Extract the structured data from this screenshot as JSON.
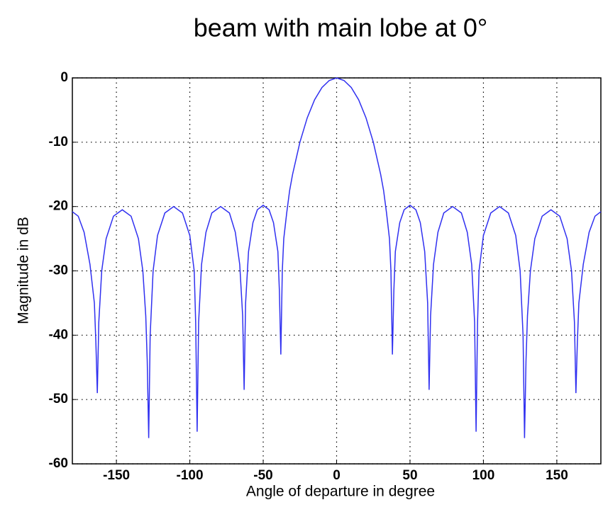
{
  "chart_data": {
    "type": "line",
    "title": "beam with main lobe at 0°",
    "x_label": "Angle of departure in degree",
    "y_label": "Magnitude in dB",
    "x": [
      -180,
      -176,
      -172,
      -168,
      -165,
      -164,
      -163,
      -162,
      -160,
      -157,
      -152,
      -146,
      -140,
      -135,
      -132,
      -130,
      -129,
      -128,
      -127,
      -125,
      -122,
      -117,
      -111,
      -105,
      -100,
      -97,
      -96,
      -95,
      -94,
      -92,
      -89,
      -85,
      -79,
      -73,
      -69,
      -66,
      -64,
      -63,
      -62,
      -60,
      -57,
      -54,
      -50,
      -46,
      -43,
      -40,
      -39,
      -38,
      -37,
      -36,
      -34,
      -32,
      -30,
      -25,
      -20,
      -15,
      -10,
      -5,
      0,
      5,
      10,
      15,
      20,
      25,
      30,
      32,
      34,
      36,
      37,
      38,
      39,
      40,
      43,
      46,
      50,
      54,
      57,
      60,
      62,
      63,
      64,
      66,
      69,
      73,
      79,
      85,
      89,
      92,
      94,
      95,
      96,
      97,
      100,
      105,
      111,
      117,
      122,
      125,
      127,
      128,
      129,
      130,
      132,
      135,
      140,
      146,
      152,
      157,
      160,
      162,
      163,
      164,
      165,
      168,
      172,
      176,
      180
    ],
    "series": [
      {
        "color": "#3030f0",
        "values": [
          -20.8,
          -21.5,
          -24,
          -29,
          -35,
          -41,
          -49,
          -38,
          -30,
          -25,
          -21.5,
          -20.5,
          -21.5,
          -25,
          -30,
          -37,
          -44,
          -56,
          -40,
          -30,
          -24.5,
          -21,
          -20,
          -21,
          -24.5,
          -30,
          -38,
          -55,
          -38,
          -29,
          -24,
          -21,
          -20,
          -21,
          -24,
          -29,
          -37,
          -48.5,
          -35,
          -27,
          -22.5,
          -20.5,
          -19.8,
          -20.5,
          -22.5,
          -27,
          -33,
          -43,
          -30,
          -25,
          -21,
          -17.5,
          -15,
          -10,
          -6.2,
          -3.4,
          -1.5,
          -0.4,
          0,
          -0.4,
          -1.5,
          -3.4,
          -6.2,
          -10,
          -15,
          -17.5,
          -21,
          -25,
          -30,
          -43,
          -33,
          -27,
          -22.5,
          -20.5,
          -19.8,
          -20.5,
          -22.5,
          -27,
          -35,
          -48.5,
          -37,
          -29,
          -24,
          -21,
          -20,
          -21,
          -24,
          -29,
          -38,
          -55,
          -38,
          -30,
          -24.5,
          -21,
          -20,
          -21,
          -24.5,
          -30,
          -40,
          -56,
          -44,
          -37,
          -30,
          -25,
          -21.5,
          -20.5,
          -21.5,
          -25,
          -30,
          -38,
          -49,
          -41,
          -35,
          -29,
          -24,
          -21.5,
          -20.8
        ]
      }
    ],
    "xlim": [
      -180,
      180
    ],
    "ylim": [
      -60,
      0
    ],
    "xticks": [
      -150,
      -100,
      -50,
      0,
      50,
      100,
      150
    ],
    "yticks": [
      -60,
      -50,
      -40,
      -30,
      -20,
      -10,
      0
    ],
    "grid": true
  }
}
